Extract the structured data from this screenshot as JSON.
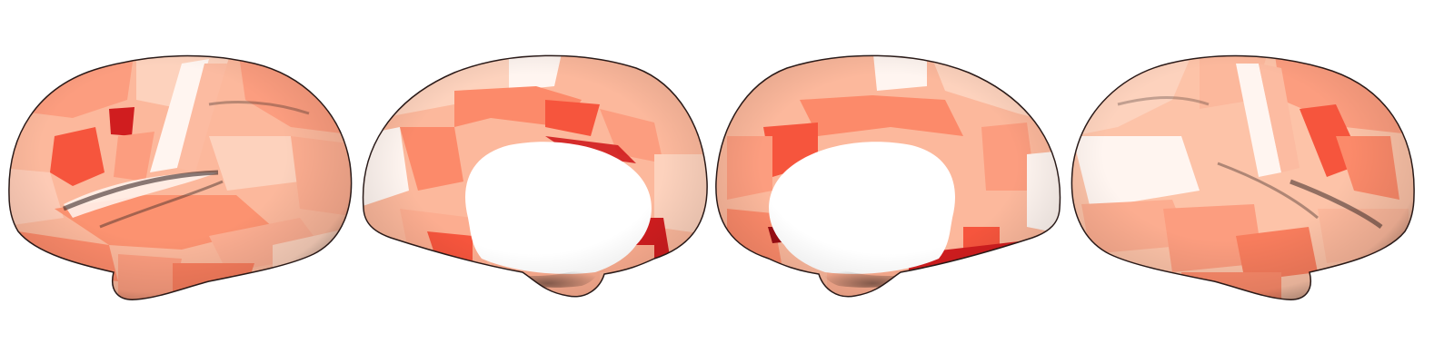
{
  "figure": {
    "panels": [
      {
        "view": "left-lateral"
      },
      {
        "view": "left-medial"
      },
      {
        "view": "right-medial"
      },
      {
        "view": "right-lateral"
      }
    ],
    "colormap": {
      "name": "Reds",
      "stops": [
        "#fff5f0",
        "#fdd2bd",
        "#fc9d7f",
        "#f6553d",
        "#d01d1f",
        "#9a0c14",
        "#67000d"
      ]
    },
    "medial_wall_color": "#ffffff",
    "background_color": "#ffffff"
  }
}
